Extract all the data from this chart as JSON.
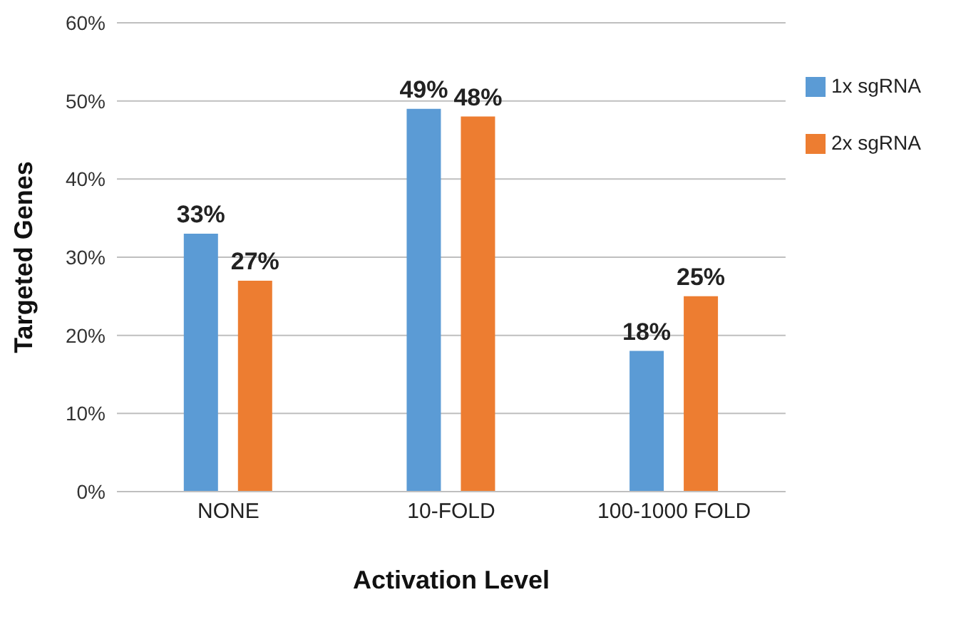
{
  "chart_data": {
    "type": "bar",
    "xlabel": "Activation Level",
    "ylabel": "Targeted Genes",
    "categories": [
      "NONE",
      "10-FOLD",
      "100-1000 FOLD"
    ],
    "series": [
      {
        "name": "1x sgRNA",
        "color": "#5b9bd5",
        "values": [
          33,
          49,
          18
        ],
        "value_labels": [
          "33%",
          "49%",
          "18%"
        ]
      },
      {
        "name": "2x sgRNA",
        "color": "#ed7d31",
        "values": [
          27,
          48,
          25
        ],
        "value_labels": [
          "27%",
          "48%",
          "25%"
        ]
      }
    ],
    "ylim": [
      0,
      60
    ],
    "yticks": [
      {
        "value": 0,
        "label": "0%"
      },
      {
        "value": 10,
        "label": "10%"
      },
      {
        "value": 20,
        "label": "20%"
      },
      {
        "value": 30,
        "label": "30%"
      },
      {
        "value": 40,
        "label": "40%"
      },
      {
        "value": 50,
        "label": "50%"
      },
      {
        "value": 60,
        "label": "60%"
      }
    ],
    "grid": "y",
    "legend": "right"
  }
}
